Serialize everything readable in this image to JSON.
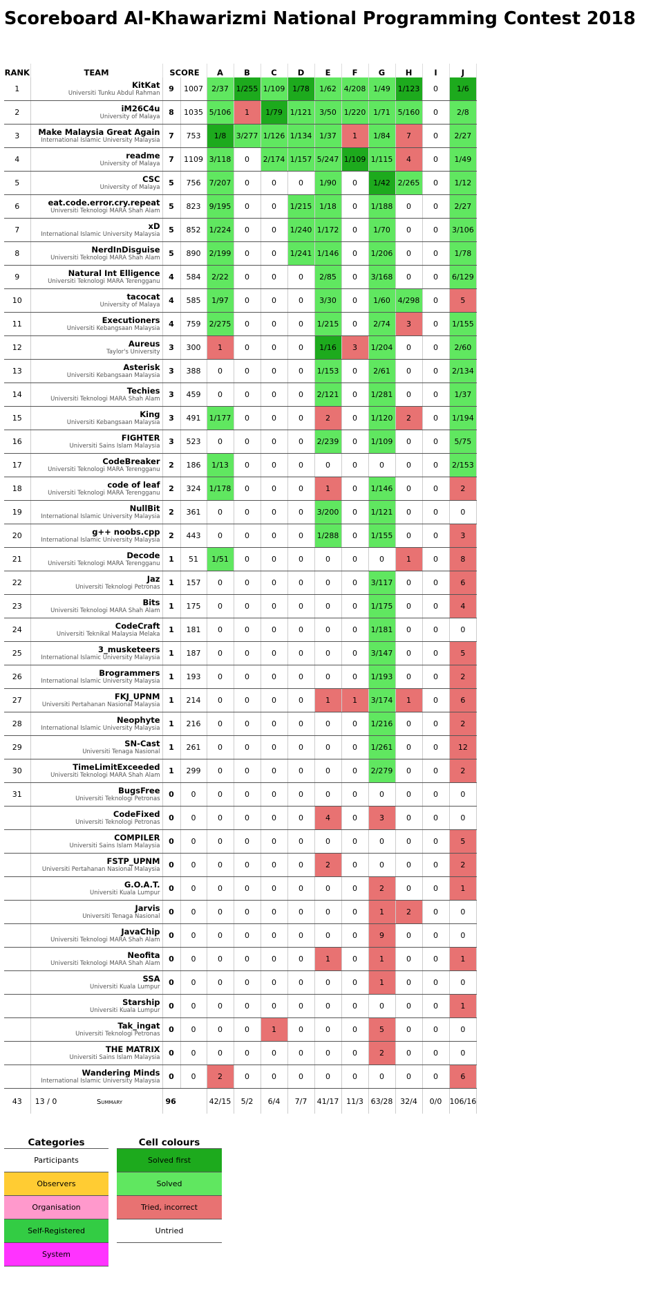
{
  "title": "Scoreboard Al-Khawarizmi National Programming Contest 2018",
  "table": {
    "headers": {
      "rank": "RANK",
      "team": "TEAM",
      "score": "SCORE",
      "problems": [
        "A",
        "B",
        "C",
        "D",
        "E",
        "F",
        "G",
        "H",
        "I",
        "J"
      ]
    },
    "status_colors": {
      "f": "#1daa1d",
      "s": "#60e760",
      "t": "#e87272",
      "u": "#ffffff"
    },
    "rows": [
      {
        "rank": 1,
        "team": "KitKat",
        "affiliation": "Universiti Tunku Abdul Rahman",
        "solved": 9,
        "penalty": 1007,
        "cells": [
          "2/37",
          "1/255",
          "1/109",
          "1/78",
          "1/62",
          "4/208",
          "1/49",
          "1/123",
          "0",
          "1/6"
        ],
        "status": "sfsfsssfuf"
      },
      {
        "rank": 2,
        "team": "iM26C4u",
        "affiliation": "University of Malaya",
        "solved": 8,
        "penalty": 1035,
        "cells": [
          "5/106",
          "1",
          "1/79",
          "1/121",
          "3/50",
          "1/220",
          "1/71",
          "5/160",
          "0",
          "2/8"
        ],
        "status": "stfsssssus"
      },
      {
        "rank": 3,
        "team": "Make Malaysia Great Again",
        "affiliation": "International Islamic University Malaysia",
        "solved": 7,
        "penalty": 753,
        "cells": [
          "1/8",
          "3/277",
          "1/126",
          "1/134",
          "1/37",
          "1",
          "1/84",
          "7",
          "0",
          "2/27"
        ],
        "status": "fsssststus"
      },
      {
        "rank": 4,
        "team": "readme",
        "affiliation": "University of Malaya",
        "solved": 7,
        "penalty": 1109,
        "cells": [
          "3/118",
          "0",
          "2/174",
          "1/157",
          "5/247",
          "1/109",
          "1/115",
          "4",
          "0",
          "1/49"
        ],
        "status": "susssfstus"
      },
      {
        "rank": 5,
        "team": "CSC",
        "affiliation": "University of Malaya",
        "solved": 5,
        "penalty": 756,
        "cells": [
          "7/207",
          "0",
          "0",
          "0",
          "1/90",
          "0",
          "1/42",
          "2/265",
          "0",
          "1/12"
        ],
        "status": "suuusufsus"
      },
      {
        "rank": 6,
        "team": "eat.code.error.cry.repeat",
        "affiliation": "Universiti Teknologi MARA Shah Alam",
        "solved": 5,
        "penalty": 823,
        "cells": [
          "9/195",
          "0",
          "0",
          "1/215",
          "1/18",
          "0",
          "1/188",
          "0",
          "0",
          "2/27"
        ],
        "status": "suussusuus"
      },
      {
        "rank": 7,
        "team": "xD",
        "affiliation": "International Islamic University Malaysia",
        "solved": 5,
        "penalty": 852,
        "cells": [
          "1/224",
          "0",
          "0",
          "1/240",
          "1/172",
          "0",
          "1/70",
          "0",
          "0",
          "3/106"
        ],
        "status": "suussusuus"
      },
      {
        "rank": 8,
        "team": "NerdInDisguise",
        "affiliation": "Universiti Teknologi MARA Shah Alam",
        "solved": 5,
        "penalty": 890,
        "cells": [
          "2/199",
          "0",
          "0",
          "1/241",
          "1/146",
          "0",
          "1/206",
          "0",
          "0",
          "1/78"
        ],
        "status": "suussusuus"
      },
      {
        "rank": 9,
        "team": "Natural Int Elligence",
        "affiliation": "Universiti Teknologi MARA Terengganu",
        "solved": 4,
        "penalty": 584,
        "cells": [
          "2/22",
          "0",
          "0",
          "0",
          "2/85",
          "0",
          "3/168",
          "0",
          "0",
          "6/129"
        ],
        "status": "suuususuus"
      },
      {
        "rank": 10,
        "team": "tacocat",
        "affiliation": "University of Malaya",
        "solved": 4,
        "penalty": 585,
        "cells": [
          "1/97",
          "0",
          "0",
          "0",
          "3/30",
          "0",
          "1/60",
          "4/298",
          "0",
          "5"
        ],
        "status": "suuusussut"
      },
      {
        "rank": 11,
        "team": "Executioners",
        "affiliation": "Universiti Kebangsaan Malaysia",
        "solved": 4,
        "penalty": 759,
        "cells": [
          "2/275",
          "0",
          "0",
          "0",
          "1/215",
          "0",
          "2/74",
          "3",
          "0",
          "1/155"
        ],
        "status": "suuusustus"
      },
      {
        "rank": 12,
        "team": "Aureus",
        "affiliation": "Taylor's University",
        "solved": 3,
        "penalty": 300,
        "cells": [
          "1",
          "0",
          "0",
          "0",
          "1/16",
          "3",
          "1/204",
          "0",
          "0",
          "2/60"
        ],
        "status": "tuuuftsuus"
      },
      {
        "rank": 13,
        "team": "Asterisk",
        "affiliation": "Universiti Kebangsaan Malaysia",
        "solved": 3,
        "penalty": 388,
        "cells": [
          "0",
          "0",
          "0",
          "0",
          "1/153",
          "0",
          "2/61",
          "0",
          "0",
          "2/134"
        ],
        "status": "uuuususuus"
      },
      {
        "rank": 14,
        "team": "Techies",
        "affiliation": "Universiti Teknologi MARA Shah Alam",
        "solved": 3,
        "penalty": 459,
        "cells": [
          "0",
          "0",
          "0",
          "0",
          "2/121",
          "0",
          "1/281",
          "0",
          "0",
          "1/37"
        ],
        "status": "uuuususuus"
      },
      {
        "rank": 15,
        "team": "King",
        "affiliation": "Universiti Kebangsaan Malaysia",
        "solved": 3,
        "penalty": 491,
        "cells": [
          "1/177",
          "0",
          "0",
          "0",
          "2",
          "0",
          "1/120",
          "2",
          "0",
          "1/194"
        ],
        "status": "suuutustus"
      },
      {
        "rank": 16,
        "team": "FIGHTER",
        "affiliation": "Universiti Sains Islam Malaysia",
        "solved": 3,
        "penalty": 523,
        "cells": [
          "0",
          "0",
          "0",
          "0",
          "2/239",
          "0",
          "1/109",
          "0",
          "0",
          "5/75"
        ],
        "status": "uuuususuus"
      },
      {
        "rank": 17,
        "team": "CodeBreaker",
        "affiliation": "Universiti Teknologi MARA Terengganu",
        "solved": 2,
        "penalty": 186,
        "cells": [
          "1/13",
          "0",
          "0",
          "0",
          "0",
          "0",
          "0",
          "0",
          "0",
          "2/153"
        ],
        "status": "suuuuuuuus"
      },
      {
        "rank": 18,
        "team": "code of leaf",
        "affiliation": "Universiti Teknologi MARA Terengganu",
        "solved": 2,
        "penalty": 324,
        "cells": [
          "1/178",
          "0",
          "0",
          "0",
          "1",
          "0",
          "1/146",
          "0",
          "0",
          "2"
        ],
        "status": "suuutusuut"
      },
      {
        "rank": 19,
        "team": "NullBit",
        "affiliation": "International Islamic University Malaysia",
        "solved": 2,
        "penalty": 361,
        "cells": [
          "0",
          "0",
          "0",
          "0",
          "3/200",
          "0",
          "1/121",
          "0",
          "0",
          "0"
        ],
        "status": "uuuususuuu"
      },
      {
        "rank": 20,
        "team": "g++ noobs.cpp",
        "affiliation": "International Islamic University Malaysia",
        "solved": 2,
        "penalty": 443,
        "cells": [
          "0",
          "0",
          "0",
          "0",
          "1/288",
          "0",
          "1/155",
          "0",
          "0",
          "3"
        ],
        "status": "uuuususuut"
      },
      {
        "rank": 21,
        "team": "Decode",
        "affiliation": "Universiti Teknologi MARA Terengganu",
        "solved": 1,
        "penalty": 51,
        "cells": [
          "1/51",
          "0",
          "0",
          "0",
          "0",
          "0",
          "0",
          "1",
          "0",
          "8"
        ],
        "status": "suuuuuutut"
      },
      {
        "rank": 22,
        "team": "Jaz",
        "affiliation": "Universiti Teknologi Petronas",
        "solved": 1,
        "penalty": 157,
        "cells": [
          "0",
          "0",
          "0",
          "0",
          "0",
          "0",
          "3/117",
          "0",
          "0",
          "6"
        ],
        "status": "uuuuuusuut"
      },
      {
        "rank": 23,
        "team": "Bits",
        "affiliation": "Universiti Teknologi MARA Shah Alam",
        "solved": 1,
        "penalty": 175,
        "cells": [
          "0",
          "0",
          "0",
          "0",
          "0",
          "0",
          "1/175",
          "0",
          "0",
          "4"
        ],
        "status": "uuuuuusuut"
      },
      {
        "rank": 24,
        "team": "CodeCraft",
        "affiliation": "Universiti Teknikal Malaysia Melaka",
        "solved": 1,
        "penalty": 181,
        "cells": [
          "0",
          "0",
          "0",
          "0",
          "0",
          "0",
          "1/181",
          "0",
          "0",
          "0"
        ],
        "status": "uuuuuusuuu"
      },
      {
        "rank": 25,
        "team": "3_musketeers",
        "affiliation": "International Islamic University Malaysia",
        "solved": 1,
        "penalty": 187,
        "cells": [
          "0",
          "0",
          "0",
          "0",
          "0",
          "0",
          "3/147",
          "0",
          "0",
          "5"
        ],
        "status": "uuuuuusuut"
      },
      {
        "rank": 26,
        "team": "Brogrammers",
        "affiliation": "International Islamic University Malaysia",
        "solved": 1,
        "penalty": 193,
        "cells": [
          "0",
          "0",
          "0",
          "0",
          "0",
          "0",
          "1/193",
          "0",
          "0",
          "2"
        ],
        "status": "uuuuuusuut"
      },
      {
        "rank": 27,
        "team": "FKJ_UPNM",
        "affiliation": "Universiti Pertahanan Nasional Malaysia",
        "solved": 1,
        "penalty": 214,
        "cells": [
          "0",
          "0",
          "0",
          "0",
          "1",
          "1",
          "3/174",
          "1",
          "0",
          "6"
        ],
        "status": "uuuuttstut"
      },
      {
        "rank": 28,
        "team": "Neophyte",
        "affiliation": "International Islamic University Malaysia",
        "solved": 1,
        "penalty": 216,
        "cells": [
          "0",
          "0",
          "0",
          "0",
          "0",
          "0",
          "1/216",
          "0",
          "0",
          "2"
        ],
        "status": "uuuuuusuut"
      },
      {
        "rank": 29,
        "team": "SN-Cast",
        "affiliation": "Universiti Tenaga Nasional",
        "solved": 1,
        "penalty": 261,
        "cells": [
          "0",
          "0",
          "0",
          "0",
          "0",
          "0",
          "1/261",
          "0",
          "0",
          "12"
        ],
        "status": "uuuuuusuut"
      },
      {
        "rank": 30,
        "team": "TimeLimitExceeded",
        "affiliation": "Universiti Teknologi MARA Shah Alam",
        "solved": 1,
        "penalty": 299,
        "cells": [
          "0",
          "0",
          "0",
          "0",
          "0",
          "0",
          "2/279",
          "0",
          "0",
          "2"
        ],
        "status": "uuuuuusuut"
      },
      {
        "rank": 31,
        "team": "BugsFree",
        "affiliation": "Universiti Teknologi Petronas",
        "solved": 0,
        "penalty": 0,
        "cells": [
          "0",
          "0",
          "0",
          "0",
          "0",
          "0",
          "0",
          "0",
          "0",
          "0"
        ],
        "status": "uuuuuuuuuu"
      },
      {
        "team": "CodeFixed",
        "affiliation": "Universiti Teknologi Petronas",
        "solved": 0,
        "penalty": 0,
        "cells": [
          "0",
          "0",
          "0",
          "0",
          "4",
          "0",
          "3",
          "0",
          "0",
          "0"
        ],
        "status": "uuuututuuu"
      },
      {
        "team": "COMPILER",
        "affiliation": "Universiti Sains Islam Malaysia",
        "solved": 0,
        "penalty": 0,
        "cells": [
          "0",
          "0",
          "0",
          "0",
          "0",
          "0",
          "0",
          "0",
          "0",
          "5"
        ],
        "status": "uuuuuuuuut"
      },
      {
        "team": "FSTP_UPNM",
        "affiliation": "Universiti Pertahanan Nasional Malaysia",
        "solved": 0,
        "penalty": 0,
        "cells": [
          "0",
          "0",
          "0",
          "0",
          "2",
          "0",
          "0",
          "0",
          "0",
          "2"
        ],
        "status": "uuuutuuuut"
      },
      {
        "team": "G.O.A.T.",
        "affiliation": "Universiti Kuala Lumpur",
        "solved": 0,
        "penalty": 0,
        "cells": [
          "0",
          "0",
          "0",
          "0",
          "0",
          "0",
          "2",
          "0",
          "0",
          "1"
        ],
        "status": "uuuuuutuut"
      },
      {
        "team": "Jarvis",
        "affiliation": "Universiti Tenaga Nasional",
        "solved": 0,
        "penalty": 0,
        "cells": [
          "0",
          "0",
          "0",
          "0",
          "0",
          "0",
          "1",
          "2",
          "0",
          "0"
        ],
        "status": "uuuuuuttuu"
      },
      {
        "team": "JavaChip",
        "affiliation": "Universiti Teknologi MARA Shah Alam",
        "solved": 0,
        "penalty": 0,
        "cells": [
          "0",
          "0",
          "0",
          "0",
          "0",
          "0",
          "9",
          "0",
          "0",
          "0"
        ],
        "status": "uuuuuutuuu"
      },
      {
        "team": "Neofita",
        "affiliation": "Universiti Teknologi MARA Shah Alam",
        "solved": 0,
        "penalty": 0,
        "cells": [
          "0",
          "0",
          "0",
          "0",
          "1",
          "0",
          "1",
          "0",
          "0",
          "1"
        ],
        "status": "uuuututuut"
      },
      {
        "team": "SSA",
        "affiliation": "Universiti Kuala Lumpur",
        "solved": 0,
        "penalty": 0,
        "cells": [
          "0",
          "0",
          "0",
          "0",
          "0",
          "0",
          "1",
          "0",
          "0",
          "0"
        ],
        "status": "uuuuuutuuu"
      },
      {
        "team": "Starship",
        "affiliation": "Universiti Kuala Lumpur",
        "solved": 0,
        "penalty": 0,
        "cells": [
          "0",
          "0",
          "0",
          "0",
          "0",
          "0",
          "0",
          "0",
          "0",
          "1"
        ],
        "status": "uuuuuuuuut"
      },
      {
        "team": "Tak_ingat",
        "affiliation": "Universiti Teknologi Petronas",
        "solved": 0,
        "penalty": 0,
        "cells": [
          "0",
          "0",
          "1",
          "0",
          "0",
          "0",
          "5",
          "0",
          "0",
          "0"
        ],
        "status": "uutuuutuuu"
      },
      {
        "team": "THE MATRIX",
        "affiliation": "Universiti Sains Islam Malaysia",
        "solved": 0,
        "penalty": 0,
        "cells": [
          "0",
          "0",
          "0",
          "0",
          "0",
          "0",
          "2",
          "0",
          "0",
          "0"
        ],
        "status": "uuuuuutuuu"
      },
      {
        "team": "Wandering Minds",
        "affiliation": "International Islamic University Malaysia",
        "solved": 0,
        "penalty": 0,
        "cells": [
          "2",
          "0",
          "0",
          "0",
          "0",
          "0",
          "0",
          "0",
          "0",
          "6"
        ],
        "status": "tuuuuuuuut"
      }
    ],
    "summary": {
      "teams": 43,
      "stats": "13 / 0",
      "label": "Summary",
      "solved": 96,
      "cells": [
        "42/15",
        "5/2",
        "6/4",
        "7/7",
        "41/17",
        "11/3",
        "63/28",
        "32/4",
        "0/0",
        "106/16"
      ]
    }
  },
  "legends": [
    {
      "title": "Categories",
      "items": [
        {
          "label": "Participants",
          "color": "#ffffff"
        },
        {
          "label": "Observers",
          "color": "#ffcc33"
        },
        {
          "label": "Organisation",
          "color": "#ff99cc"
        },
        {
          "label": "Self-Registered",
          "color": "#33cc44"
        },
        {
          "label": "System",
          "color": "#ff33ff"
        }
      ]
    },
    {
      "title": "Cell colours",
      "items": [
        {
          "label": "Solved first",
          "color": "#1daa1d"
        },
        {
          "label": "Solved",
          "color": "#60e760"
        },
        {
          "label": "Tried, incorrect",
          "color": "#e87272"
        },
        {
          "label": "Untried",
          "color": "#ffffff"
        }
      ]
    }
  ]
}
